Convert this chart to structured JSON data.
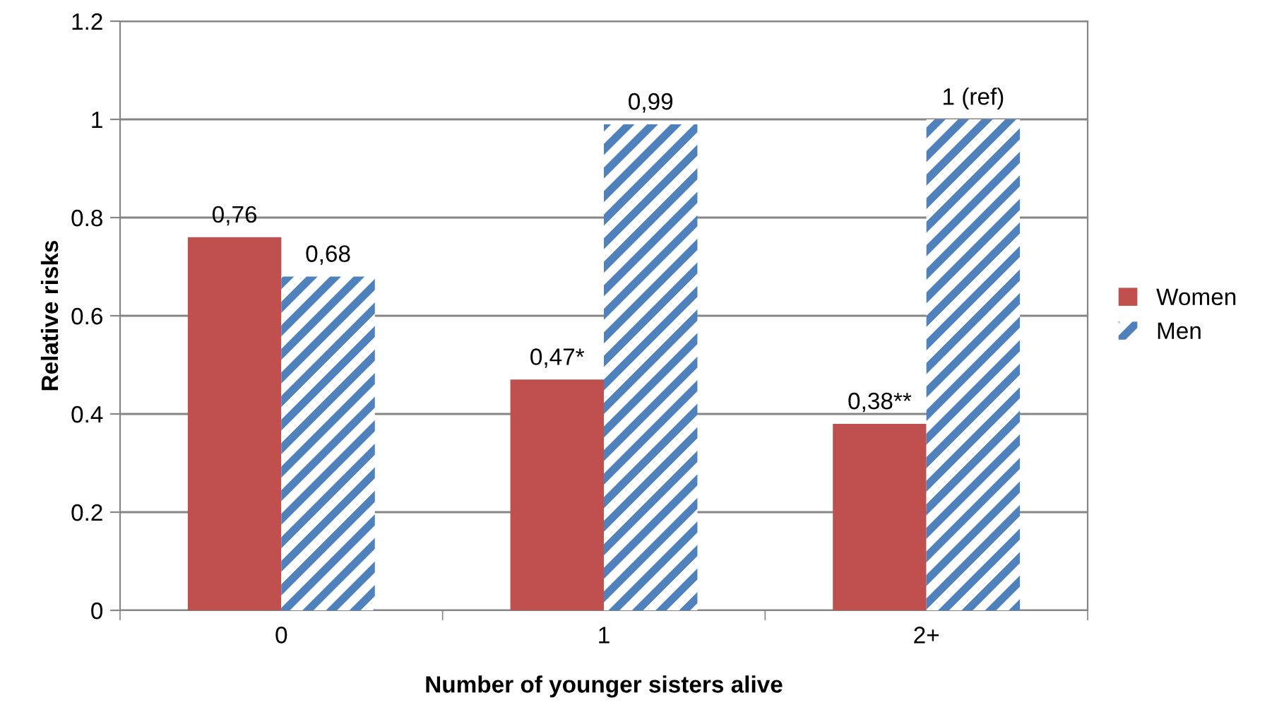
{
  "chart_data": {
    "type": "bar",
    "xlabel": "Number of younger sisters alive",
    "ylabel": "Relative risks",
    "categories": [
      "0",
      "1",
      "2+"
    ],
    "series": [
      {
        "name": "Women",
        "color": "#c0504d",
        "values": [
          0.76,
          0.47,
          0.38
        ],
        "value_labels": [
          "0,76",
          "0,47*",
          "0,38**"
        ]
      },
      {
        "name": "Men",
        "color": "#4f81bd",
        "values": [
          0.68,
          0.99,
          1
        ],
        "value_labels": [
          "0,68",
          "0,99",
          "1 (ref)"
        ]
      }
    ],
    "ylim": [
      0,
      1.2
    ],
    "yticks": [
      0,
      0.2,
      0.4,
      0.6,
      0.8,
      1,
      1.2
    ],
    "grid": "y",
    "legend": "right"
  }
}
